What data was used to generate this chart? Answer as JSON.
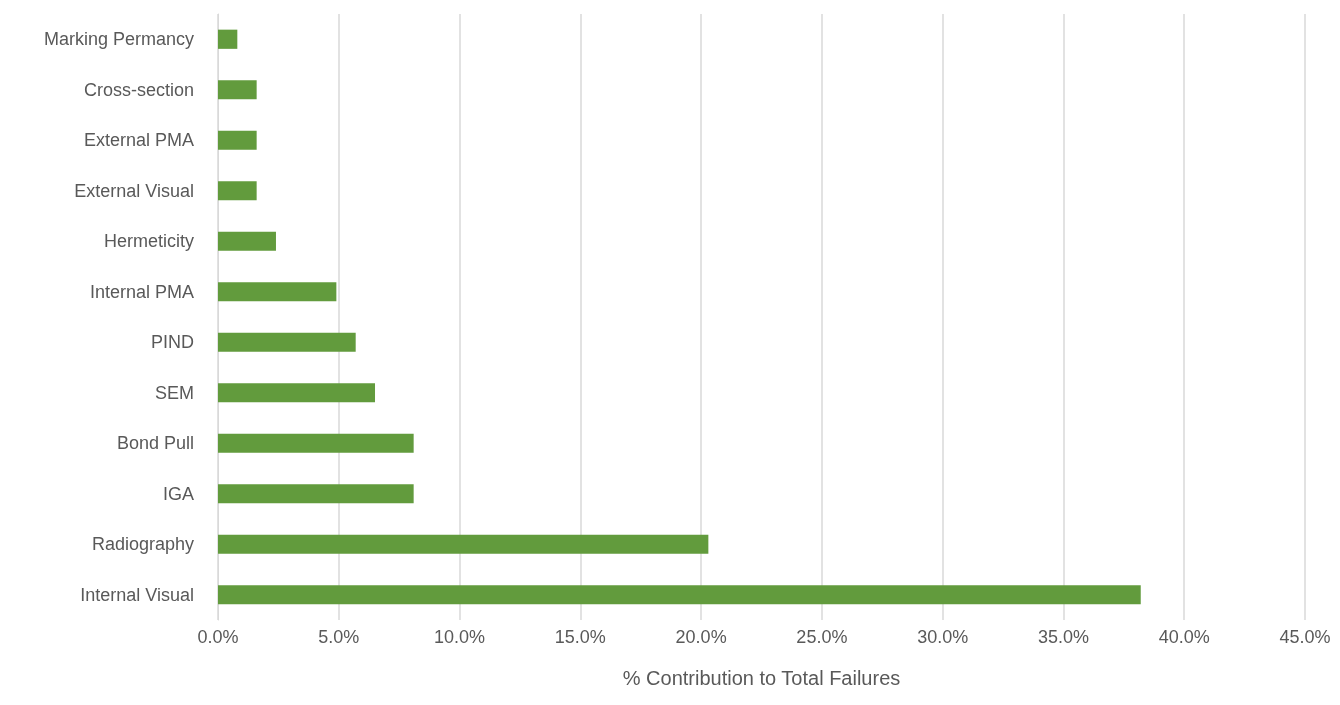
{
  "chart_data": {
    "type": "bar",
    "orientation": "horizontal",
    "xlabel": "% Contribution to Total Failures",
    "categories": [
      "Marking Permancy",
      "Cross-section",
      "External PMA",
      "External Visual",
      "Hermeticity",
      "Internal PMA",
      "PIND",
      "SEM",
      "Bond Pull",
      "IGA",
      "Radiography",
      "Internal Visual"
    ],
    "values": [
      0.8,
      1.6,
      1.6,
      1.6,
      2.4,
      4.9,
      5.7,
      6.5,
      8.1,
      8.1,
      20.3,
      38.2
    ],
    "color": "#629b3d",
    "xlim": [
      0,
      45
    ],
    "xticks": [
      {
        "value": 0,
        "label": "0.0%"
      },
      {
        "value": 5,
        "label": "5.0%"
      },
      {
        "value": 10,
        "label": "10.0%"
      },
      {
        "value": 15,
        "label": "15.0%"
      },
      {
        "value": 20,
        "label": "20.0%"
      },
      {
        "value": 25,
        "label": "25.0%"
      },
      {
        "value": 30,
        "label": "30.0%"
      },
      {
        "value": 35,
        "label": "35.0%"
      },
      {
        "value": 40,
        "label": "40.0%"
      },
      {
        "value": 45,
        "label": "45.0%"
      }
    ],
    "grid": "x"
  }
}
